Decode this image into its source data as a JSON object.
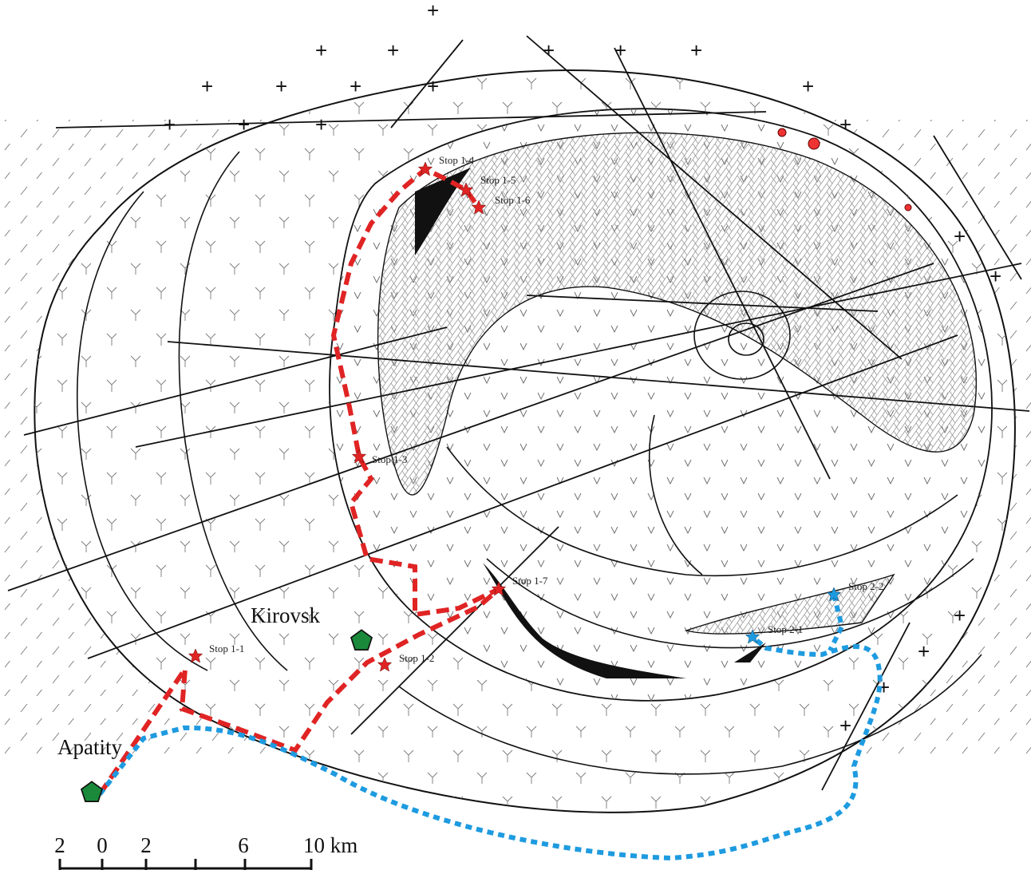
{
  "stops": [
    {
      "label": "Stop 1-1"
    },
    {
      "label": "Stop 1-2"
    },
    {
      "label": "Stop 1-3"
    },
    {
      "label": "Stop 1-4"
    },
    {
      "label": "Stop 1-5"
    },
    {
      "label": "Stop 1-6"
    },
    {
      "label": "Stop 1-7"
    },
    {
      "label": "Stop 2-1"
    },
    {
      "label": "Stop 2-2"
    }
  ],
  "towns": [
    {
      "label": "Kirovsk"
    },
    {
      "label": "Apatity"
    }
  ],
  "scale_bar": {
    "labels": [
      "2",
      "0",
      "2",
      "6",
      "10 km"
    ]
  }
}
